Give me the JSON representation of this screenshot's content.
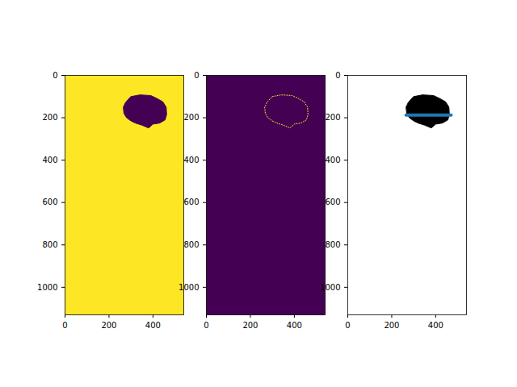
{
  "chart_data": [
    {
      "type": "mask",
      "xlim": [
        0,
        540
      ],
      "ylim": [
        1130,
        0
      ],
      "xticks": [
        0,
        200,
        400
      ],
      "yticks": [
        0,
        200,
        400,
        600,
        800,
        1000
      ],
      "colors": [
        "#fde725",
        "#440154"
      ],
      "region": {
        "x": [
          300,
          340,
          390,
          420,
          445,
          460,
          462,
          455,
          430,
          400,
          380,
          350,
          320,
          300,
          280,
          268,
          265,
          275,
          290
        ],
        "y": [
          100,
          92,
          95,
          110,
          125,
          150,
          185,
          210,
          225,
          230,
          248,
          235,
          225,
          215,
          200,
          180,
          150,
          128,
          110
        ]
      }
    },
    {
      "type": "outline",
      "xlim": [
        0,
        540
      ],
      "ylim": [
        1130,
        0
      ],
      "xticks": [
        0,
        200,
        400
      ],
      "yticks": [
        0,
        200,
        400,
        600,
        800,
        1000
      ],
      "colors": [
        "#440154",
        "#fde725"
      ],
      "region": {
        "x": [
          300,
          340,
          390,
          420,
          445,
          460,
          462,
          455,
          430,
          400,
          380,
          350,
          320,
          300,
          280,
          268,
          265,
          275,
          290
        ],
        "y": [
          100,
          92,
          95,
          110,
          125,
          150,
          185,
          210,
          225,
          230,
          248,
          235,
          225,
          215,
          200,
          180,
          150,
          128,
          110
        ]
      }
    },
    {
      "type": "mask",
      "xlim": [
        0,
        540
      ],
      "ylim": [
        1130,
        0
      ],
      "xticks": [
        0,
        200,
        400
      ],
      "yticks": [
        0,
        200,
        400,
        600,
        800,
        1000
      ],
      "colors": [
        "#ffffff",
        "#000000"
      ],
      "region": {
        "x": [
          300,
          340,
          390,
          420,
          445,
          460,
          462,
          455,
          430,
          400,
          380,
          350,
          320,
          300,
          280,
          268,
          265,
          275,
          290
        ],
        "y": [
          100,
          92,
          95,
          110,
          125,
          150,
          185,
          210,
          225,
          230,
          248,
          235,
          225,
          215,
          200,
          180,
          150,
          128,
          110
        ]
      },
      "line": {
        "x": [
          265,
          470
        ],
        "y": [
          187,
          187
        ],
        "color": "#1f77b4"
      }
    }
  ]
}
